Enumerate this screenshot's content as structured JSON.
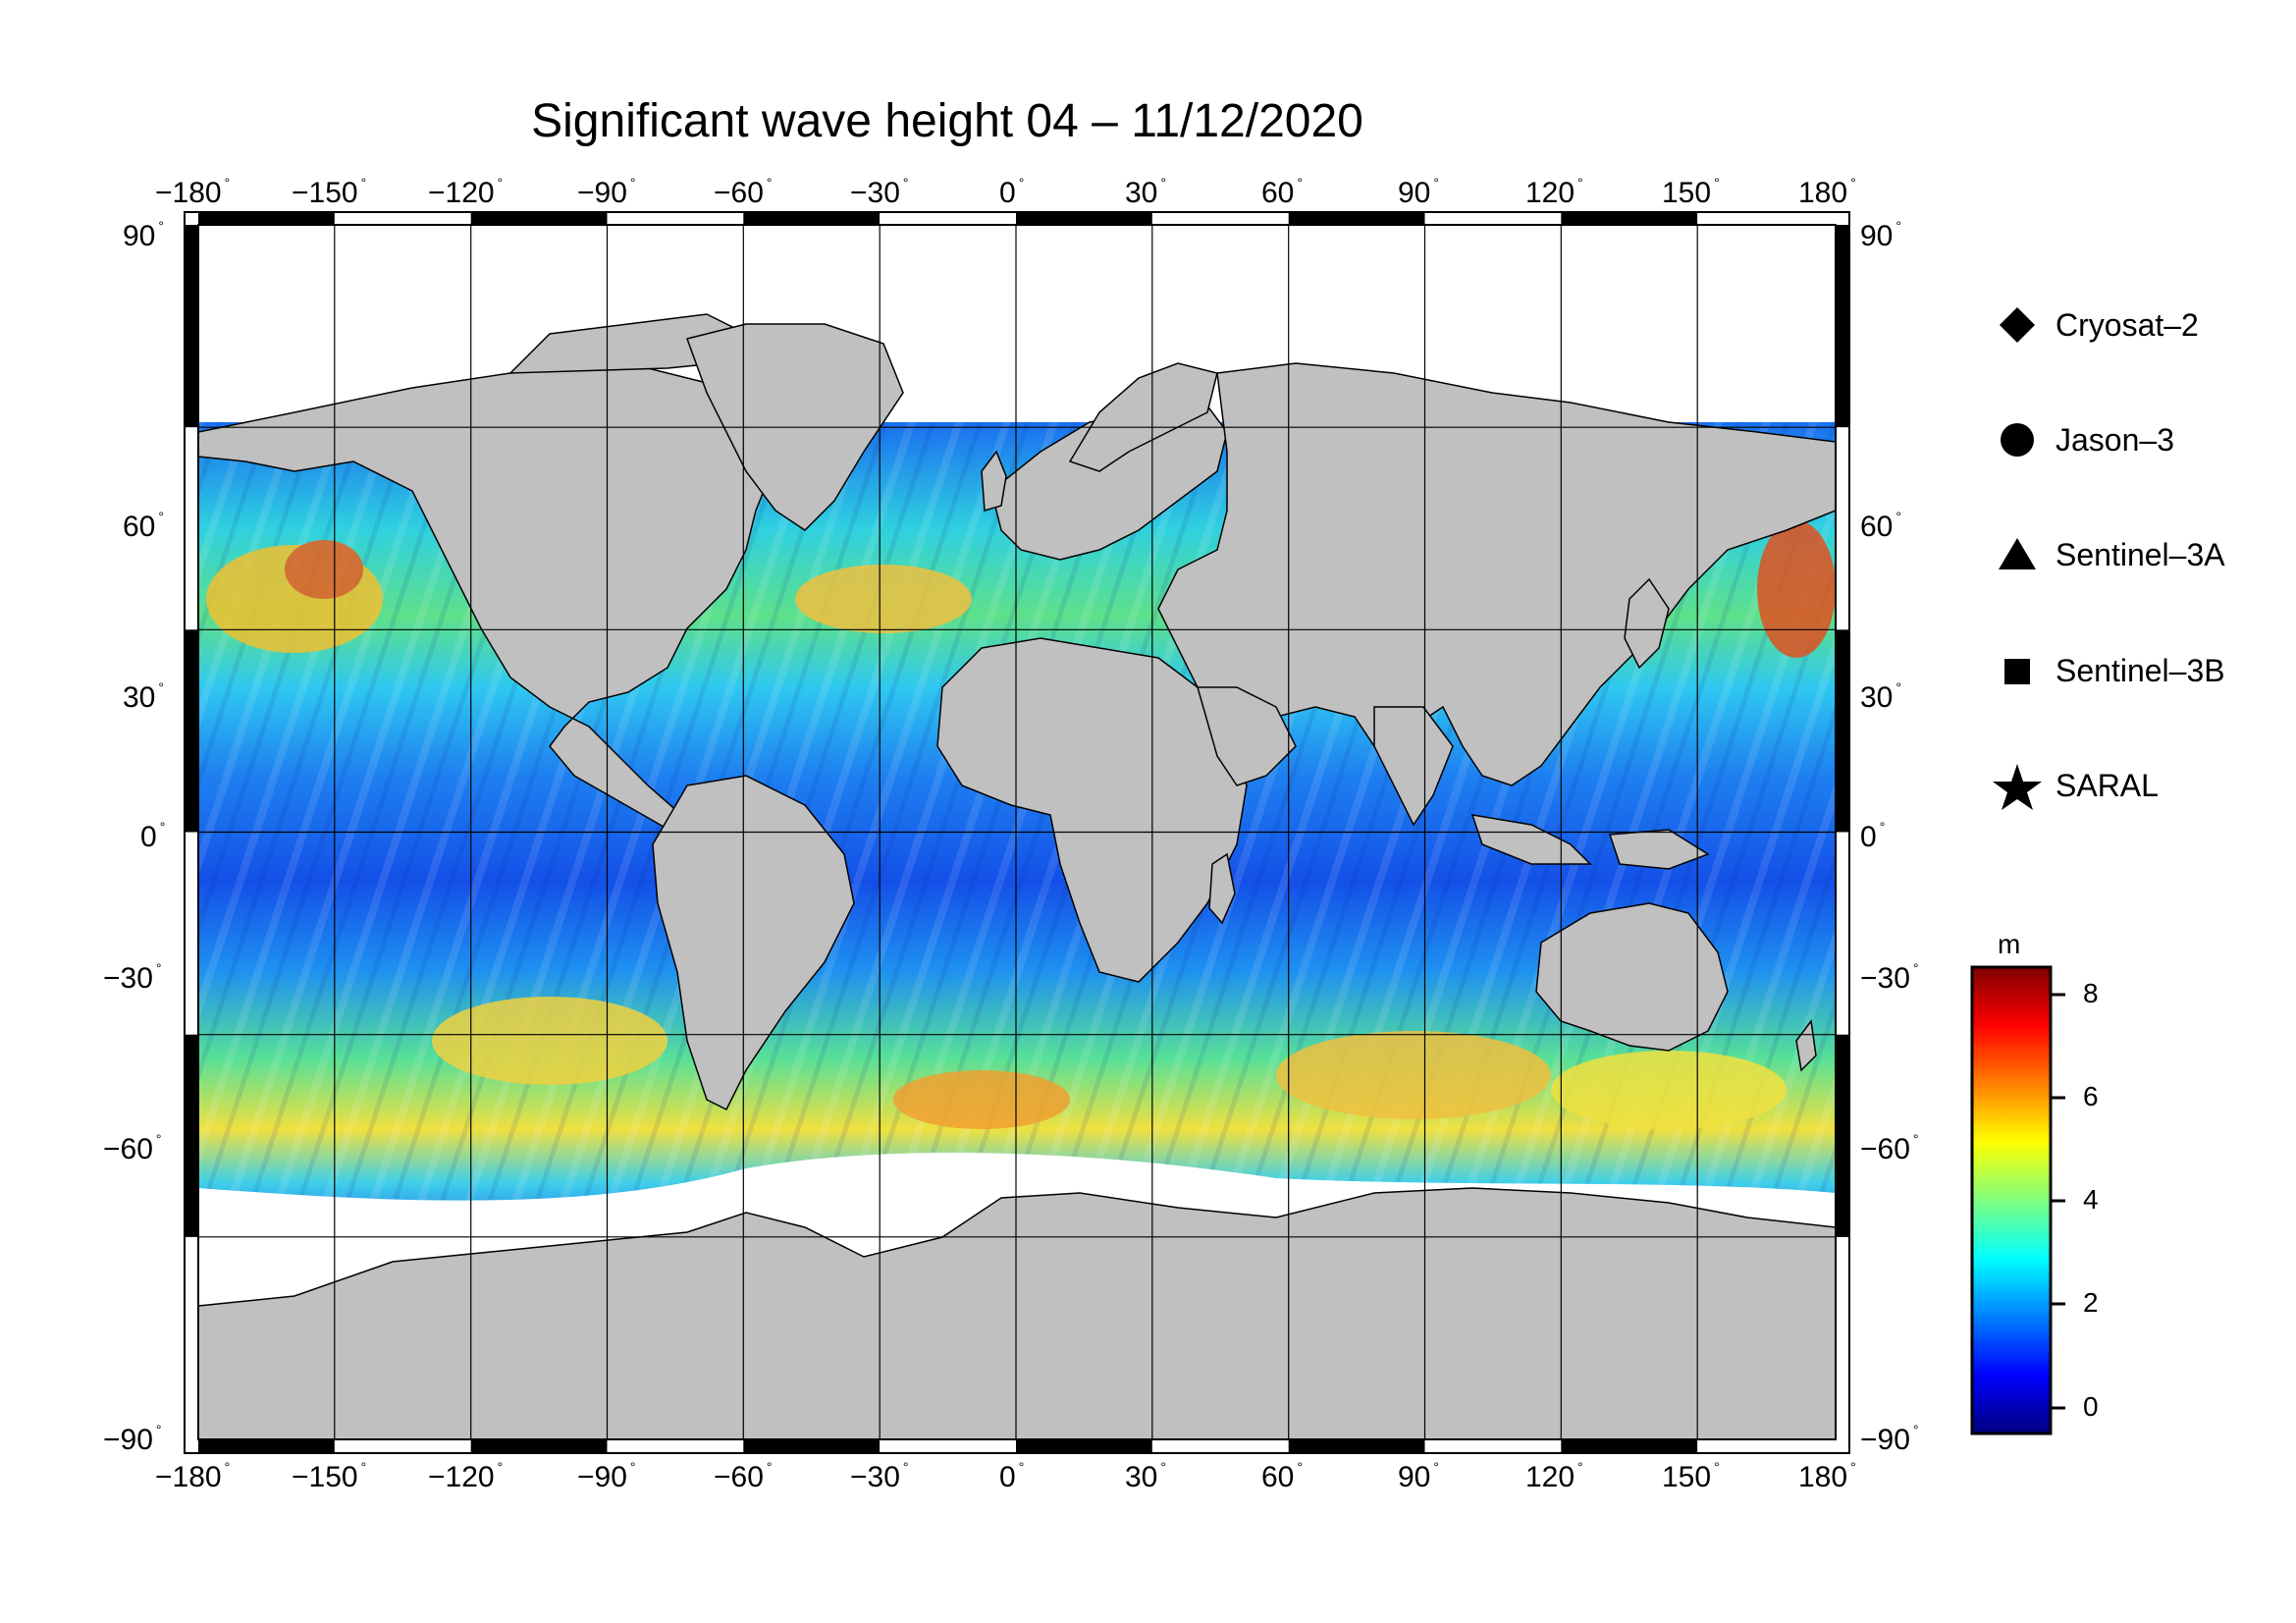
{
  "title": "Significant wave height 04 – 11/12/2020",
  "map": {
    "projection": "equirectangular",
    "lon_range": [
      -180,
      180
    ],
    "lat_range": [
      -90,
      90
    ],
    "lon_ticks": [
      -180,
      -150,
      -120,
      -90,
      -60,
      -30,
      0,
      30,
      60,
      90,
      120,
      150,
      180
    ],
    "lat_ticks": [
      90,
      60,
      30,
      0,
      -30,
      -60,
      -90
    ],
    "degree_symbol": "°",
    "grid": true,
    "land_color": "#c0c0c0",
    "ice_color": "#ffffff",
    "ocean_note_colors": [
      "#0a1fd8",
      "#1e7cf0",
      "#2fd0f0",
      "#a8e84a",
      "#f0e030",
      "#f08020",
      "#d01818"
    ]
  },
  "legend": {
    "items": [
      {
        "label": "Cryosat–2",
        "icon": "diamond-icon"
      },
      {
        "label": "Jason–3",
        "icon": "circle-icon"
      },
      {
        "label": "Sentinel–3A",
        "icon": "triangle-icon"
      },
      {
        "label": "Sentinel–3B",
        "icon": "square-icon"
      },
      {
        "label": "SARAL",
        "icon": "star-icon"
      }
    ]
  },
  "colorbar": {
    "unit": "m",
    "range": [
      -0.6,
      8.6
    ],
    "ticks": [
      "8",
      "6",
      "4",
      "2",
      "0"
    ],
    "tick_values": [
      8,
      6,
      4,
      2,
      0
    ],
    "colors": [
      "#00007f",
      "#0000ff",
      "#007fff",
      "#00ffff",
      "#7fff7f",
      "#ffff00",
      "#ff7f00",
      "#ff0000",
      "#7f0000"
    ]
  }
}
